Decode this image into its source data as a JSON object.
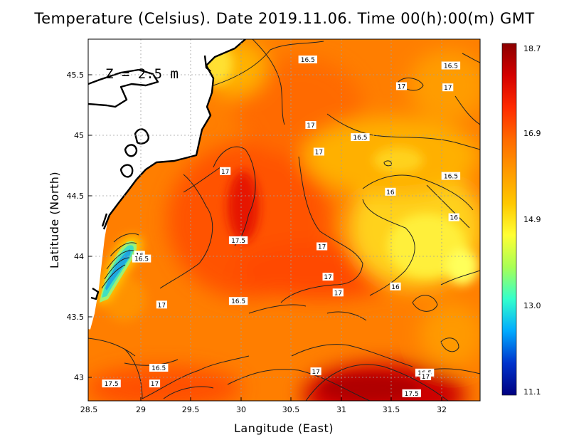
{
  "title": "Temperature (Celsius). Date 2019.11.06. Time 00(h):00(m) GMT",
  "depth_label": "Z = 2.5 m",
  "x_axis": {
    "title": "Langitude (East)",
    "ticks": [
      "28.5",
      "29",
      "29.5",
      "30",
      "30.5",
      "31",
      "31.5",
      "32"
    ]
  },
  "y_axis": {
    "title": "Latitude (North)",
    "ticks": [
      "45.5",
      "45",
      "44.5",
      "44",
      "43.5",
      "43"
    ]
  },
  "colorbar": {
    "labels": [
      "18.7",
      "16.9",
      "14.9",
      "13.0",
      "11.1"
    ],
    "min": 11.1,
    "max": 18.7,
    "colors": [
      "#8b0000",
      "#d40000",
      "#ff2a00",
      "#ff6a00",
      "#ff9a00",
      "#ffc800",
      "#ffff33",
      "#a8ff55",
      "#33ffcc",
      "#00aaff",
      "#0033cc",
      "#000080"
    ]
  },
  "contour_labels": [
    {
      "text": "16.5",
      "lon": 30.68,
      "lat": 45.63
    },
    {
      "text": "16.5",
      "lon": 32.1,
      "lat": 45.58
    },
    {
      "text": "17",
      "lon": 31.61,
      "lat": 45.41
    },
    {
      "text": "17",
      "lon": 32.07,
      "lat": 45.4
    },
    {
      "text": "17",
      "lon": 30.71,
      "lat": 45.09
    },
    {
      "text": "16.5",
      "lon": 31.2,
      "lat": 44.99
    },
    {
      "text": "17",
      "lon": 30.79,
      "lat": 44.87
    },
    {
      "text": "17",
      "lon": 29.86,
      "lat": 44.71
    },
    {
      "text": "16.5",
      "lon": 32.1,
      "lat": 44.67
    },
    {
      "text": "16",
      "lon": 31.5,
      "lat": 44.54
    },
    {
      "text": "16",
      "lon": 32.13,
      "lat": 44.33
    },
    {
      "text": "17.5",
      "lon": 29.99,
      "lat": 44.14
    },
    {
      "text": "17",
      "lon": 30.82,
      "lat": 44.09
    },
    {
      "text": "16",
      "lon": 29.01,
      "lat": 44.02
    },
    {
      "text": "16.5",
      "lon": 29.03,
      "lat": 43.99
    },
    {
      "text": "17",
      "lon": 30.88,
      "lat": 43.84
    },
    {
      "text": "16",
      "lon": 31.55,
      "lat": 43.76
    },
    {
      "text": "17",
      "lon": 30.98,
      "lat": 43.71
    },
    {
      "text": "16.5",
      "lon": 29.99,
      "lat": 43.64
    },
    {
      "text": "17",
      "lon": 29.23,
      "lat": 43.61
    },
    {
      "text": "16.5",
      "lon": 29.2,
      "lat": 43.09
    },
    {
      "text": "17",
      "lon": 30.76,
      "lat": 43.06
    },
    {
      "text": "16.5",
      "lon": 31.84,
      "lat": 43.05
    },
    {
      "text": "17",
      "lon": 31.85,
      "lat": 43.02
    },
    {
      "text": "17.5",
      "lon": 28.73,
      "lat": 42.96
    },
    {
      "text": "17",
      "lon": 29.16,
      "lat": 42.96
    },
    {
      "text": "17.5",
      "lon": 31.71,
      "lat": 42.88
    }
  ]
}
